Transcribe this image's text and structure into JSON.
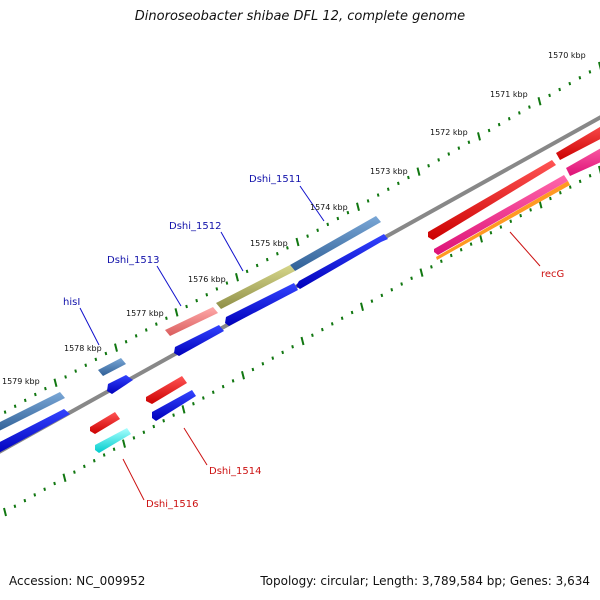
{
  "title": "Dinoroseobacter shibae DFL 12, complete genome",
  "footer": {
    "accession": "Accession: NC_009952",
    "summary": "Topology: circular; Length: 3,789,584 bp; Genes: 3,634"
  },
  "colors": {
    "backbone": "#888888",
    "tick": "#117711",
    "label_top": "#1111aa",
    "label_bottom": "#cc1111"
  },
  "kbp_labels": [
    "1570 kbp",
    "1571 kbp",
    "1572 kbp",
    "1573 kbp",
    "1574 kbp",
    "1575 kbp",
    "1576 kbp",
    "1577 kbp",
    "1578 kbp",
    "1579 kbp"
  ],
  "genes_top": [
    {
      "label": "Dshi_1511",
      "color": "#4477aa"
    },
    {
      "label": "Dshi_1512",
      "color": "#aaaa66"
    },
    {
      "label": "Dshi_1513",
      "color": "#ee7777"
    },
    {
      "label": "hisI",
      "color": "#4477aa"
    }
  ],
  "genes_bottom": [
    {
      "label": "recG",
      "color": "#ee1111"
    },
    {
      "label": "Dshi_1514",
      "color": "#ee1111"
    },
    {
      "label": "Dshi_1516",
      "color": "#ee1111"
    }
  ]
}
